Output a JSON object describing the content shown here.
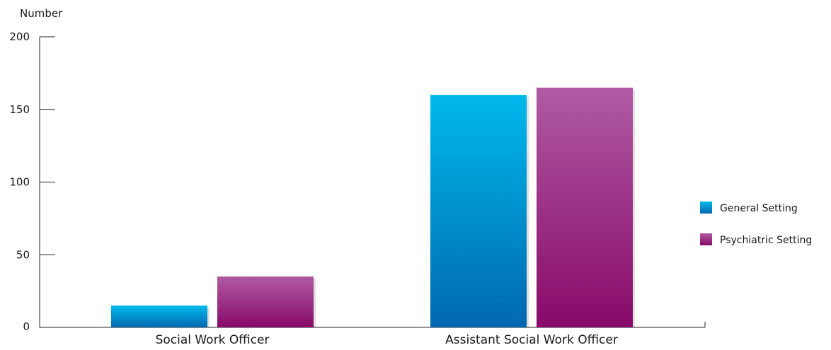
{
  "chart_data": {
    "type": "bar",
    "ylabel": "Number",
    "ylim": [
      0,
      200
    ],
    "yticks": [
      0,
      50,
      100,
      150,
      200
    ],
    "categories": [
      "Social Work Officer",
      "Assistant Social Work Officer"
    ],
    "series": [
      {
        "name": "General Setting",
        "values": [
          15,
          160
        ],
        "color_top": "#00b9ec",
        "color_bottom": "#0068b0"
      },
      {
        "name": "Psychiatric Setting",
        "values": [
          35,
          165
        ],
        "color_top": "#b05aa3",
        "color_bottom": "#870a69"
      }
    ],
    "legend_position": "right",
    "grid": false
  }
}
